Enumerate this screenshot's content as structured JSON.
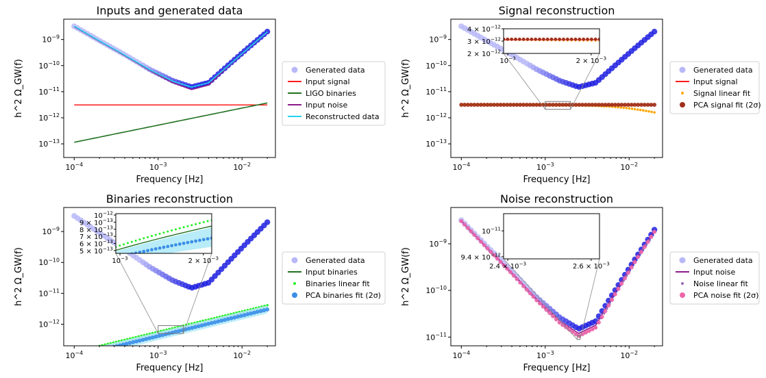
{
  "chart_data": [
    {
      "type": "line",
      "title": "Inputs and generated data",
      "xlabel": "Frequency [Hz]",
      "ylabel": "h^2 Ω_GW(f)",
      "xscale": "log",
      "yscale": "log",
      "xlim": [
        7.5e-05,
        0.025
      ],
      "ylim": [
        3e-14,
        6e-09
      ],
      "xticks": [
        {
          "v": 0.0001,
          "b": "10",
          "e": "−4"
        },
        {
          "v": 0.001,
          "b": "10",
          "e": "−3"
        },
        {
          "v": 0.01,
          "b": "10",
          "e": "−2"
        }
      ],
      "yticks": [
        {
          "v": 1e-13,
          "b": "10",
          "e": "−13"
        },
        {
          "v": 1e-12,
          "b": "10",
          "e": "−12"
        },
        {
          "v": 1e-11,
          "b": "10",
          "e": "−11"
        },
        {
          "v": 1e-10,
          "b": "10",
          "e": "−10"
        },
        {
          "v": 1e-09,
          "b": "10",
          "e": "−9"
        }
      ],
      "legend": "outside-right",
      "series": [
        {
          "name": "Generated data",
          "style": "dots",
          "color": "#b8b8f8",
          "color2": "#1f1fe0",
          "x": [
            0.0001,
            0.0002,
            0.0004,
            0.0008,
            0.0015,
            0.0025,
            0.004,
            0.007,
            0.012,
            0.02
          ],
          "y": [
            3.2e-09,
            9e-10,
            2.6e-10,
            7e-11,
            2.6e-11,
            1.5e-11,
            2.2e-11,
            1.1e-10,
            5e-10,
            2e-09
          ]
        },
        {
          "name": "Input signal",
          "style": "line",
          "color": "#ff1a1a",
          "x": [
            0.0001,
            0.02
          ],
          "y": [
            3.1e-12,
            3.1e-12
          ]
        },
        {
          "name": "LIGO binaries",
          "style": "line",
          "color": "#207020",
          "x": [
            0.0001,
            0.02
          ],
          "y": [
            1.15e-13,
            3.7e-12
          ]
        },
        {
          "name": "Input noise",
          "style": "line",
          "color": "#8b1a8b",
          "x": [
            0.0001,
            0.0002,
            0.0004,
            0.0008,
            0.0015,
            0.0025,
            0.004,
            0.007,
            0.012,
            0.02
          ],
          "y": [
            3.1e-09,
            8.5e-10,
            2.4e-10,
            6.4e-11,
            2.2e-11,
            1.2e-11,
            1.8e-11,
            1e-10,
            4.7e-10,
            1.9e-09
          ]
        },
        {
          "name": "Reconstructed data",
          "style": "line",
          "color": "#22d3f0",
          "x": [
            0.0001,
            0.0002,
            0.0004,
            0.0008,
            0.0015,
            0.0025,
            0.004,
            0.007,
            0.012,
            0.02
          ],
          "y": [
            3.2e-09,
            8.8e-10,
            2.5e-10,
            6.8e-11,
            2.5e-11,
            1.5e-11,
            2.2e-11,
            1.05e-10,
            4.8e-10,
            1.95e-09
          ]
        }
      ]
    },
    {
      "type": "line",
      "title": "Signal reconstruction",
      "xlabel": "Frequency [Hz]",
      "ylabel": "h^2 Ω_GW(f)",
      "xscale": "log",
      "yscale": "log",
      "xlim": [
        7.5e-05,
        0.025
      ],
      "ylim": [
        3e-14,
        6e-09
      ],
      "xticks": [
        {
          "v": 0.0001,
          "b": "10",
          "e": "−4"
        },
        {
          "v": 0.001,
          "b": "10",
          "e": "−3"
        },
        {
          "v": 0.01,
          "b": "10",
          "e": "−2"
        }
      ],
      "yticks": [
        {
          "v": 1e-13,
          "b": "10",
          "e": "−13"
        },
        {
          "v": 1e-12,
          "b": "10",
          "e": "−12"
        },
        {
          "v": 1e-11,
          "b": "10",
          "e": "−11"
        },
        {
          "v": 1e-10,
          "b": "10",
          "e": "−10"
        },
        {
          "v": 1e-09,
          "b": "10",
          "e": "−9"
        }
      ],
      "legend": "outside-right",
      "series": [
        {
          "name": "Generated data",
          "style": "dots",
          "color": "#b8b8f8",
          "color2": "#1f1fe0",
          "x": [
            0.0001,
            0.0002,
            0.0004,
            0.0008,
            0.0015,
            0.0025,
            0.004,
            0.007,
            0.012,
            0.02
          ],
          "y": [
            3.2e-09,
            9e-10,
            2.6e-10,
            7e-11,
            2.6e-11,
            1.5e-11,
            2.2e-11,
            1.1e-10,
            5e-10,
            2e-09
          ]
        },
        {
          "name": "Input signal",
          "style": "line",
          "color": "#ff1a1a",
          "x": [
            0.0001,
            0.02
          ],
          "y": [
            3.1e-12,
            3.1e-12
          ]
        },
        {
          "name": "Signal linear fit",
          "style": "smalldots",
          "color": "#ffa500",
          "x": [
            0.0001,
            0.001,
            0.003,
            0.006,
            0.01,
            0.015,
            0.02
          ],
          "y": [
            3.2e-12,
            3.1e-12,
            3e-12,
            2.7e-12,
            2.3e-12,
            1.9e-12,
            1.6e-12
          ]
        },
        {
          "name": "PCA signal fit (2σ)",
          "style": "bigdots",
          "color": "#a0301a",
          "x": [
            0.0001,
            0.02
          ],
          "y": [
            3.15e-12,
            3.15e-12
          ]
        }
      ],
      "inset": {
        "xlim": [
          0.00095,
          0.0021
        ],
        "ylim": [
          2e-12,
          4e-12
        ],
        "xticks": [
          {
            "v": 0.001,
            "b": "10",
            "e": "−3"
          },
          {
            "v": 0.002,
            "b": "2 × 10",
            "e": "−3"
          }
        ],
        "yticks": [
          {
            "v": 2e-12,
            "b": "2 × 10",
            "e": "−12"
          },
          {
            "v": 3e-12,
            "b": "3 × 10",
            "e": "−12"
          },
          {
            "v": 4e-12,
            "b": "4 × 10",
            "e": "−12"
          }
        ],
        "box_x": [
          0.001,
          0.002
        ],
        "box_y": [
          2.1e-12,
          4.2e-12
        ]
      }
    },
    {
      "type": "line",
      "title": "Binaries reconstruction",
      "xlabel": "Frequency [Hz]",
      "ylabel": "h^2 Ω_GW(f)",
      "xscale": "log",
      "yscale": "log",
      "xlim": [
        7.5e-05,
        0.025
      ],
      "ylim": [
        2e-13,
        6e-09
      ],
      "xticks": [
        {
          "v": 0.0001,
          "b": "10",
          "e": "−4"
        },
        {
          "v": 0.001,
          "b": "10",
          "e": "−3"
        },
        {
          "v": 0.01,
          "b": "10",
          "e": "−2"
        }
      ],
      "yticks": [
        {
          "v": 1e-12,
          "b": "10",
          "e": "−12"
        },
        {
          "v": 1e-11,
          "b": "10",
          "e": "−11"
        },
        {
          "v": 1e-10,
          "b": "10",
          "e": "−10"
        },
        {
          "v": 1e-09,
          "b": "10",
          "e": "−9"
        }
      ],
      "legend": "outside-right",
      "series": [
        {
          "name": "Generated data",
          "style": "dots",
          "color": "#b8b8f8",
          "color2": "#1f1fe0",
          "x": [
            0.0001,
            0.0002,
            0.0004,
            0.0008,
            0.0015,
            0.0025,
            0.004,
            0.007,
            0.012,
            0.02
          ],
          "y": [
            3.2e-09,
            9e-10,
            2.6e-10,
            7e-11,
            2.6e-11,
            1.5e-11,
            2.2e-11,
            1.1e-10,
            5e-10,
            2e-09
          ]
        },
        {
          "name": "Input binaries",
          "style": "line",
          "color": "#207020",
          "x": [
            0.0001,
            0.02
          ],
          "y": [
            1.15e-13,
            3.7e-12
          ]
        },
        {
          "name": "Binaries linear fit",
          "style": "smalldots",
          "color": "#22ee22",
          "x": [
            0.0001,
            0.02
          ],
          "y": [
            1.25e-13,
            4.1e-12
          ]
        },
        {
          "name": "PCA binaries fit (2σ)",
          "style": "bigdots",
          "color": "#3a8ee8",
          "band": "#b8ecf8",
          "x": [
            0.0001,
            0.02
          ],
          "y": [
            9e-14,
            3e-12
          ]
        }
      ],
      "inset": {
        "xlim": [
          0.00095,
          0.0021
        ],
        "ylim": [
          4.6e-13,
          1.02e-12
        ],
        "xticks": [
          {
            "v": 0.001,
            "b": "10",
            "e": "−3"
          },
          {
            "v": 0.002,
            "b": "2 × 10",
            "e": "−3"
          }
        ],
        "yticks": [
          {
            "v": 5e-13,
            "b": "5 × 10",
            "e": "−13"
          },
          {
            "v": 6e-13,
            "b": "6 × 10",
            "e": "−13"
          },
          {
            "v": 7e-13,
            "b": "7 × 10",
            "e": "−13"
          },
          {
            "v": 8e-13,
            "b": "8 × 10",
            "e": "−13"
          },
          {
            "v": 9e-13,
            "b": "9 × 10",
            "e": "−13"
          },
          {
            "v": 1e-12,
            "b": "10",
            "e": "−12"
          }
        ],
        "box_x": [
          0.001,
          0.002
        ],
        "box_y": [
          5e-13,
          9e-13
        ]
      }
    },
    {
      "type": "line",
      "title": "Noise reconstruction",
      "xlabel": "Frequency [Hz]",
      "ylabel": "h^2 Ω_GW(f)",
      "xscale": "log",
      "yscale": "log",
      "xlim": [
        7.5e-05,
        0.025
      ],
      "ylim": [
        6.5e-12,
        6e-09
      ],
      "xticks": [
        {
          "v": 0.0001,
          "b": "10",
          "e": "−4"
        },
        {
          "v": 0.001,
          "b": "10",
          "e": "−3"
        },
        {
          "v": 0.01,
          "b": "10",
          "e": "−2"
        }
      ],
      "yticks": [
        {
          "v": 1e-11,
          "b": "10",
          "e": "−11"
        },
        {
          "v": 1e-10,
          "b": "10",
          "e": "−10"
        },
        {
          "v": 1e-09,
          "b": "10",
          "e": "−9"
        }
      ],
      "legend": "outside-right",
      "series": [
        {
          "name": "Generated data",
          "style": "dots",
          "color": "#b8b8f8",
          "color2": "#1f1fe0",
          "x": [
            0.0001,
            0.0002,
            0.0004,
            0.0008,
            0.0015,
            0.0025,
            0.004,
            0.007,
            0.012,
            0.02
          ],
          "y": [
            3.2e-09,
            9e-10,
            2.6e-10,
            7e-11,
            2.6e-11,
            1.5e-11,
            2.2e-11,
            1.1e-10,
            5e-10,
            2e-09
          ]
        },
        {
          "name": "Input noise",
          "style": "line",
          "color": "#8b1a8b",
          "x": [
            0.0001,
            0.0002,
            0.0004,
            0.0008,
            0.0015,
            0.0025,
            0.004,
            0.007,
            0.012,
            0.02
          ],
          "y": [
            3.1e-09,
            8.5e-10,
            2.4e-10,
            6.4e-11,
            2.2e-11,
            1.2e-11,
            1.8e-11,
            1e-10,
            4.7e-10,
            1.9e-09
          ]
        },
        {
          "name": "Noise linear fit",
          "style": "smalldots",
          "color": "#9a6ab0",
          "x": [
            0.0001,
            0.0002,
            0.0004,
            0.0008,
            0.0015,
            0.0025,
            0.004,
            0.007,
            0.012,
            0.02
          ],
          "y": [
            3.05e-09,
            8.3e-10,
            2.3e-10,
            6e-11,
            2e-11,
            1.05e-11,
            1.6e-11,
            9e-11,
            4.4e-10,
            1.8e-09
          ]
        },
        {
          "name": "PCA noise fit (2σ)",
          "style": "bigdots",
          "color": "#ee66aa",
          "x": [
            0.0001,
            0.0002,
            0.0004,
            0.0008,
            0.0015,
            0.0025,
            0.004,
            0.007,
            0.012,
            0.02
          ],
          "y": [
            3.05e-09,
            8.3e-10,
            2.3e-10,
            6e-11,
            2e-11,
            1.05e-11,
            1.6e-11,
            9e-11,
            4.4e-10,
            1.8e-09
          ]
        }
      ],
      "inset": {
        "xlim": [
          0.00239,
          0.00262
        ],
        "ylim": [
          9.35e-12,
          1.04e-11
        ],
        "xticks": [
          {
            "v": 0.0024,
            "b": "2.4 × 10",
            "e": "−3"
          },
          {
            "v": 0.0026,
            "b": "2.6 × 10",
            "e": "−3"
          }
        ],
        "yticks": [
          {
            "v": 9.4e-12,
            "b": "9.4 × 10",
            "e": "−12"
          },
          {
            "v": 1e-11,
            "b": "10",
            "e": "−11"
          }
        ],
        "box_x": [
          0.0024,
          0.0026
        ],
        "box_y": [
          8.9e-12,
          1.08e-11
        ]
      }
    }
  ]
}
